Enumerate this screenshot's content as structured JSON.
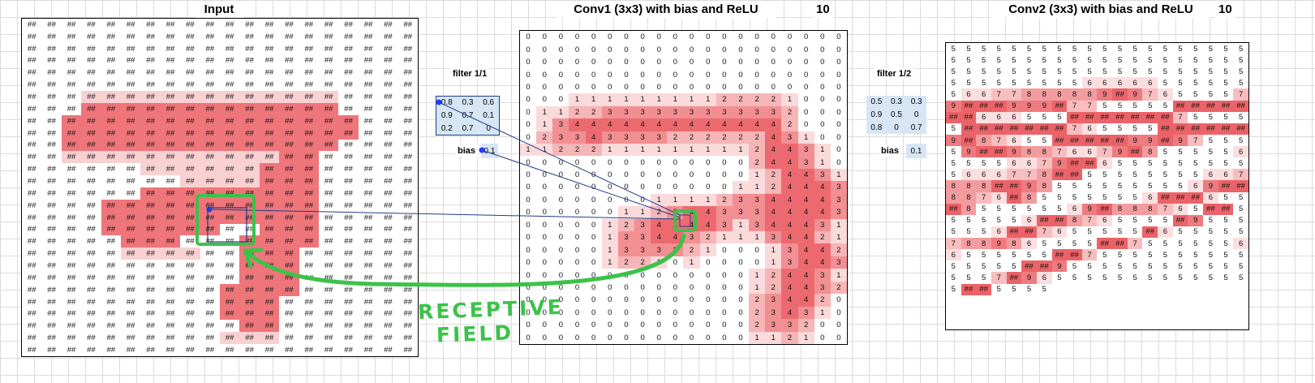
{
  "panels": {
    "input": {
      "title": "Input",
      "cell_text": "##"
    },
    "conv1": {
      "title": "Conv1 (3x3) with bias and ReLU",
      "filter_count": "10"
    },
    "conv2": {
      "title": "Conv2 (3x3) with bias and ReLU",
      "filter_count": "10"
    }
  },
  "filter1": {
    "label": "filter 1/1",
    "values": [
      "0.8",
      "0.3",
      "0.6",
      "0.9",
      "0.7",
      "0.1",
      "0.2",
      "0.7",
      "0"
    ],
    "bias_label": "bias",
    "bias": "0.1"
  },
  "filter2": {
    "label": "filter 1/2",
    "values": [
      "0.5",
      "0.3",
      "0.3",
      "0.9",
      "0.5",
      "0",
      "0.8",
      "0",
      "0.7"
    ],
    "bias_label": "bias",
    "bias": "0.1"
  },
  "annotation": {
    "line1": "RECEPTIVE",
    "line2": "FIELD"
  },
  "colors": {
    "heat_strong": "#e8474d",
    "heat_light": "#f8d4d6",
    "filter_bg": "#d7e6f5",
    "connector": "#1f3c88",
    "annotation_green": "#3cc24a"
  },
  "conv1_grid": [
    "00000000000000000000",
    "00000000000000000000",
    "00000000000000000000",
    "00000000000000000000",
    "00000000000000000000",
    "00011111111122221000",
    "01122333333333332000",
    "01344444444444442000",
    "02334333322222243100",
    "11222111111111244310",
    "00000000000000244310",
    "00000000000000124431",
    "00000000000001124443",
    "00000000111123344443",
    "00000011234433344443",
    "00000123444431344431",
    "00000133443211134421",
    "00000133332100013442",
    "00000122101000013443",
    "00000000000000124431",
    "00000000000000124432",
    "00000000000000234420",
    "00000000000000234310",
    "00000000000000233200",
    "00000000000000112100"
  ],
  "conv2_grid": [
    "55555555555555555555",
    "55555555555555555555",
    "55555555555555555555",
    "55555555566666555555",
    "56677888889##9765555",
    "79######999##7755555",
    "##############666555",
    "##############755555",
    "##############765555",
    "############9##87655",
    "##########99##975555",
    "9####98876679##85555",
    "5655556679####655555",
    "55555666778###855555",
    "555667888####9855555",
    "555569####8876##8555",
    "55556#####7655##8555",
    "55569##888765###6555",
    "5556###98765555##955",
    "55556###87655555##65",
    "55557889865555####75",
    "5555566555555####755",
    "5555555555555###7955",
    "55555555555557##9655",
    "555555555555###65555"
  ]
}
